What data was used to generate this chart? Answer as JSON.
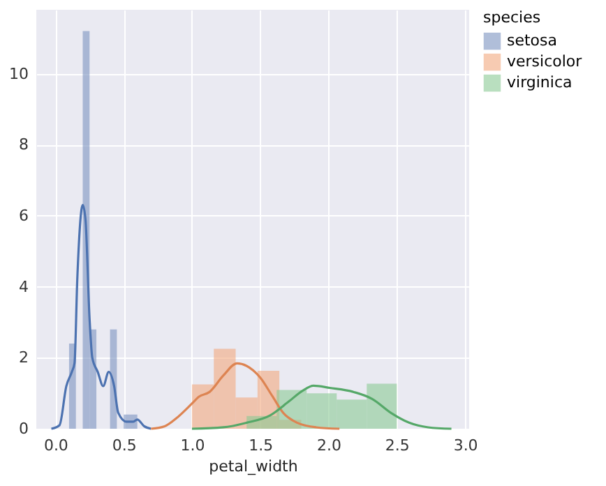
{
  "chart_data": {
    "type": "histogram",
    "xlabel": "petal_width",
    "legend_title": "species",
    "legend": "right",
    "grid": true,
    "xlim": [
      -0.14,
      3.03
    ],
    "ylim": [
      0,
      11.8
    ],
    "xticks": [
      {
        "value": 0,
        "label": "0.0"
      },
      {
        "value": 0.5,
        "label": "0.5"
      },
      {
        "value": 1,
        "label": "1.0"
      },
      {
        "value": 1.5,
        "label": "1.5"
      },
      {
        "value": 2,
        "label": "2.0"
      },
      {
        "value": 2.5,
        "label": "2.5"
      },
      {
        "value": 3,
        "label": "3.0"
      }
    ],
    "yticks": [
      0,
      2,
      4,
      6,
      8,
      10
    ],
    "series": [
      {
        "name": "setosa",
        "color": "#a8b6d4",
        "bins": [
          0.1,
          0.15,
          0.2,
          0.25,
          0.3,
          0.35,
          0.4,
          0.45,
          0.5,
          0.55,
          0.6
        ],
        "values": [
          2.4,
          0,
          11.2,
          2.8,
          0,
          0,
          2.8,
          0,
          0.4,
          0.4
        ]
      },
      {
        "name": "versicolor",
        "color": "#eec3ad",
        "bins": [
          1.0,
          1.16,
          1.32,
          1.48,
          1.64,
          1.8
        ],
        "values": [
          1.25,
          2.25,
          0.88,
          1.63,
          0.25
        ]
      },
      {
        "name": "virginica",
        "color": "#b1d6ba",
        "bins": [
          1.4,
          1.62,
          1.84,
          2.06,
          2.28,
          2.5
        ],
        "values": [
          0.36,
          1.09,
          1.0,
          0.82,
          1.27
        ]
      },
      {
        "type": "line",
        "color": "#4c72b0",
        "x": [
          -0.03,
          0.03,
          0.08,
          0.12,
          0.14,
          0.16,
          0.2,
          0.22,
          0.25,
          0.27,
          0.31,
          0.35,
          0.39,
          0.43,
          0.46,
          0.52,
          0.57,
          0.6,
          0.65,
          0.7
        ],
        "values": [
          0,
          0.1,
          1.2,
          1.6,
          1.85,
          4.2,
          6.3,
          5.9,
          3.1,
          2.0,
          1.6,
          1.2,
          1.6,
          1.2,
          0.45,
          0.2,
          0.2,
          0.26,
          0.07,
          0
        ]
      },
      {
        "type": "line",
        "color": "#dd8452",
        "x": [
          0.7,
          0.8,
          0.89,
          1.0,
          1.05,
          1.13,
          1.23,
          1.33,
          1.4,
          1.5,
          1.59,
          1.67,
          1.77,
          1.91,
          2.08
        ],
        "values": [
          0,
          0.07,
          0.31,
          0.71,
          0.9,
          1.04,
          1.5,
          1.84,
          1.77,
          1.44,
          0.91,
          0.44,
          0.17,
          0.04,
          0
        ]
      },
      {
        "type": "line",
        "color": "#55a868",
        "x": [
          1.0,
          1.23,
          1.4,
          1.57,
          1.71,
          1.81,
          1.89,
          2.01,
          2.18,
          2.32,
          2.46,
          2.59,
          2.73,
          2.9
        ],
        "values": [
          0,
          0.04,
          0.17,
          0.37,
          0.77,
          1.07,
          1.21,
          1.15,
          1.04,
          0.84,
          0.44,
          0.17,
          0.04,
          0
        ]
      }
    ]
  }
}
